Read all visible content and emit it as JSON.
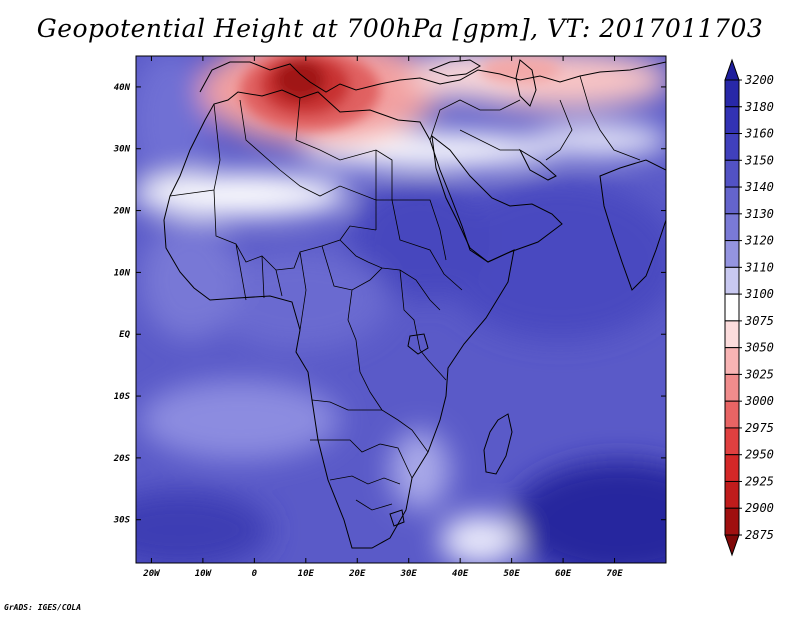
{
  "title": "Geopotential Height at 700hPa [gpm], VT: 2017011703",
  "credit": "GrADS: IGES/COLA",
  "map": {
    "lon_range": [
      -23,
      80
    ],
    "lat_range": [
      -37,
      45
    ],
    "x_ticks": [
      "20W",
      "10W",
      "0",
      "10E",
      "20E",
      "30E",
      "40E",
      "50E",
      "60E",
      "70E"
    ],
    "x_tick_values": [
      -20,
      -10,
      0,
      10,
      20,
      30,
      40,
      50,
      60,
      70
    ],
    "y_ticks": [
      "40N",
      "30N",
      "20N",
      "10N",
      "EQ",
      "10S",
      "20S",
      "30S"
    ],
    "y_tick_values": [
      40,
      30,
      20,
      10,
      0,
      -10,
      -20,
      -30
    ]
  },
  "colorbar": {
    "levels": [
      "3200",
      "3180",
      "3160",
      "3150",
      "3140",
      "3130",
      "3120",
      "3110",
      "3100",
      "3075",
      "3050",
      "3025",
      "3000",
      "2975",
      "2950",
      "2925",
      "2900",
      "2875"
    ],
    "colors": [
      "#1e1e9c",
      "#2828a8",
      "#3232b4",
      "#4040bc",
      "#5252c4",
      "#6464cc",
      "#7a7ad6",
      "#9494e0",
      "#c8c8f0",
      "#ffffff",
      "#fcdcdc",
      "#f8b4b4",
      "#f08c8c",
      "#e86464",
      "#e04040",
      "#d42828",
      "#c01c1c",
      "#a01010",
      "#800808"
    ]
  }
}
